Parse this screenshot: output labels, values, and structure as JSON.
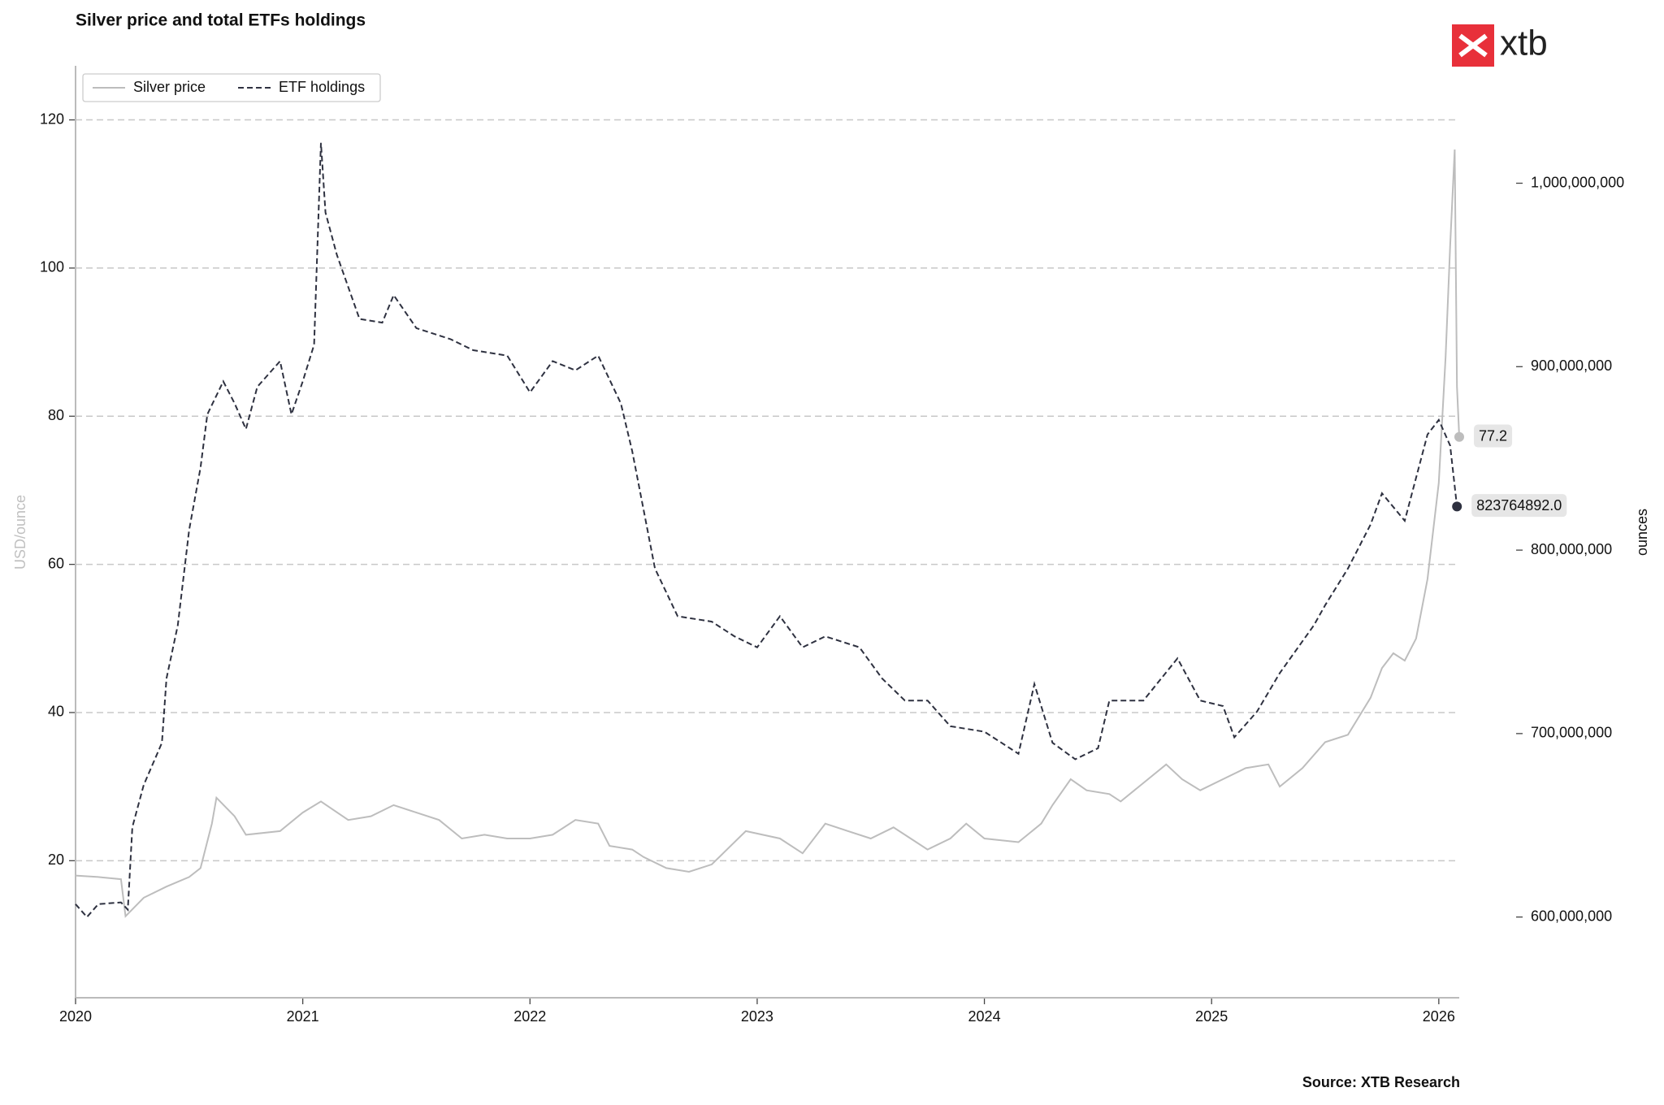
{
  "chart_data": {
    "type": "line",
    "title": "Silver price and total ETFs holdings",
    "logo": "xtb",
    "source": "Source: XTB Research",
    "y_label": "USD/ounce",
    "y2_label": "ounces",
    "xlim": [
      2020,
      2026.09
    ],
    "xticks": [
      2020,
      2021,
      2022,
      2023,
      2024,
      2025,
      2026
    ],
    "ylim": [
      1.5,
      127.3
    ],
    "yticks": [
      20,
      40,
      60,
      80,
      100,
      120
    ],
    "y2lim": [
      556000000,
      1064000000
    ],
    "y2ticks": [
      {
        "value": 600000000,
        "label": "600,000,000"
      },
      {
        "value": 700000000,
        "label": "700,000,000"
      },
      {
        "value": 800000000,
        "label": "800,000,000"
      },
      {
        "value": 900000000,
        "label": "900,000,000"
      },
      {
        "value": 1000000000,
        "label": "1,000,000,000"
      }
    ],
    "grid": true,
    "legend": "upper left",
    "series": [
      {
        "name": "Silver price",
        "color": "#bdbdbd",
        "dash": false,
        "axis": "y",
        "label_last": true,
        "x": [
          2020.0,
          2020.1,
          2020.2,
          2020.22,
          2020.3,
          2020.4,
          2020.5,
          2020.55,
          2020.6,
          2020.62,
          2020.7,
          2020.75,
          2020.9,
          2021.0,
          2021.08,
          2021.2,
          2021.3,
          2021.4,
          2021.5,
          2021.6,
          2021.7,
          2021.8,
          2021.9,
          2022.0,
          2022.1,
          2022.2,
          2022.3,
          2022.35,
          2022.45,
          2022.5,
          2022.6,
          2022.7,
          2022.8,
          2022.85,
          2022.95,
          2023.1,
          2023.2,
          2023.3,
          2023.4,
          2023.5,
          2023.6,
          2023.7,
          2023.75,
          2023.85,
          2023.92,
          2024.0,
          2024.15,
          2024.25,
          2024.3,
          2024.38,
          2024.45,
          2024.55,
          2024.6,
          2024.7,
          2024.8,
          2024.87,
          2024.95,
          2025.05,
          2025.15,
          2025.25,
          2025.3,
          2025.4,
          2025.5,
          2025.6,
          2025.7,
          2025.75,
          2025.8,
          2025.85,
          2025.9,
          2025.95,
          2026.0,
          2026.03,
          2026.05,
          2026.07,
          2026.08,
          2026.09
        ],
        "values": [
          18,
          17.8,
          17.5,
          12.5,
          15,
          16.5,
          17.8,
          19,
          25,
          28.5,
          26,
          23.5,
          24,
          26.5,
          28,
          25.5,
          26,
          27.5,
          26.5,
          25.5,
          23,
          23.5,
          23,
          23,
          23.5,
          25.5,
          25,
          22,
          21.5,
          20.5,
          19,
          18.5,
          19.5,
          21,
          24,
          23,
          21,
          25,
          24,
          23,
          24.5,
          22.5,
          21.5,
          23,
          25,
          23,
          22.5,
          25,
          27.5,
          31,
          29.5,
          29,
          28,
          30.5,
          33,
          31,
          29.5,
          31,
          32.5,
          33,
          30,
          32.5,
          36,
          37,
          42,
          46,
          48,
          47,
          50,
          58,
          71,
          88,
          103,
          116,
          84,
          77.2
        ]
      },
      {
        "name": "ETF holdings",
        "color": "#2e3140",
        "dash": true,
        "axis": "y2",
        "label_last": true,
        "x": [
          2020.0,
          2020.05,
          2020.1,
          2020.2,
          2020.23,
          2020.25,
          2020.3,
          2020.38,
          2020.4,
          2020.45,
          2020.5,
          2020.55,
          2020.58,
          2020.65,
          2020.7,
          2020.75,
          2020.8,
          2020.9,
          2020.95,
          2021.0,
          2021.05,
          2021.08,
          2021.1,
          2021.15,
          2021.25,
          2021.35,
          2021.4,
          2021.5,
          2021.65,
          2021.75,
          2021.9,
          2022.0,
          2022.1,
          2022.2,
          2022.3,
          2022.4,
          2022.45,
          2022.5,
          2022.55,
          2022.65,
          2022.8,
          2022.9,
          2023.0,
          2023.1,
          2023.2,
          2023.3,
          2023.45,
          2023.55,
          2023.65,
          2023.75,
          2023.85,
          2024.0,
          2024.15,
          2024.22,
          2024.3,
          2024.4,
          2024.5,
          2024.55,
          2024.7,
          2024.85,
          2024.95,
          2025.05,
          2025.1,
          2025.2,
          2025.3,
          2025.45,
          2025.5,
          2025.6,
          2025.7,
          2025.75,
          2025.85,
          2025.95,
          2026.0,
          2026.05,
          2026.08
        ],
        "values": [
          607000000,
          600000000,
          607000000,
          608000000,
          604000000,
          649000000,
          672000000,
          695000000,
          730000000,
          759000000,
          811000000,
          845000000,
          874000000,
          892000000,
          880000000,
          866000000,
          889000000,
          903000000,
          874000000,
          892000000,
          912000000,
          1022000000,
          984000000,
          961000000,
          926000000,
          924000000,
          939000000,
          921000000,
          915000000,
          909000000,
          906000000,
          886000000,
          903000000,
          898000000,
          906000000,
          880000000,
          854000000,
          822000000,
          790000000,
          764000000,
          761000000,
          753000000,
          747000000,
          764000000,
          747000000,
          753000000,
          747000000,
          730000000,
          718000000,
          718000000,
          704000000,
          701000000,
          689000000,
          727000000,
          695000000,
          686000000,
          692000000,
          718000000,
          718000000,
          741000000,
          718000000,
          715000000,
          698000000,
          712000000,
          733000000,
          759000000,
          770000000,
          790000000,
          814000000,
          831000000,
          816000000,
          863000000,
          871000000,
          857000000,
          823764892
        ],
        "value_labels": [
          null,
          null,
          null,
          null,
          null,
          null,
          null,
          null,
          null,
          null,
          null,
          null,
          null,
          null,
          null,
          null,
          null,
          null,
          null,
          null,
          null,
          null,
          null,
          null,
          null,
          null,
          null,
          null,
          null,
          null,
          null,
          null,
          null,
          null,
          null,
          null,
          null,
          null,
          null,
          null,
          null,
          null,
          null,
          null,
          null,
          null,
          null,
          null,
          null,
          null,
          null,
          null,
          null,
          null,
          null,
          null,
          null,
          null,
          null,
          null,
          null,
          null,
          null,
          null,
          null,
          null,
          null,
          null,
          null,
          null,
          null,
          null,
          null,
          null,
          "823764892.0"
        ]
      }
    ]
  }
}
